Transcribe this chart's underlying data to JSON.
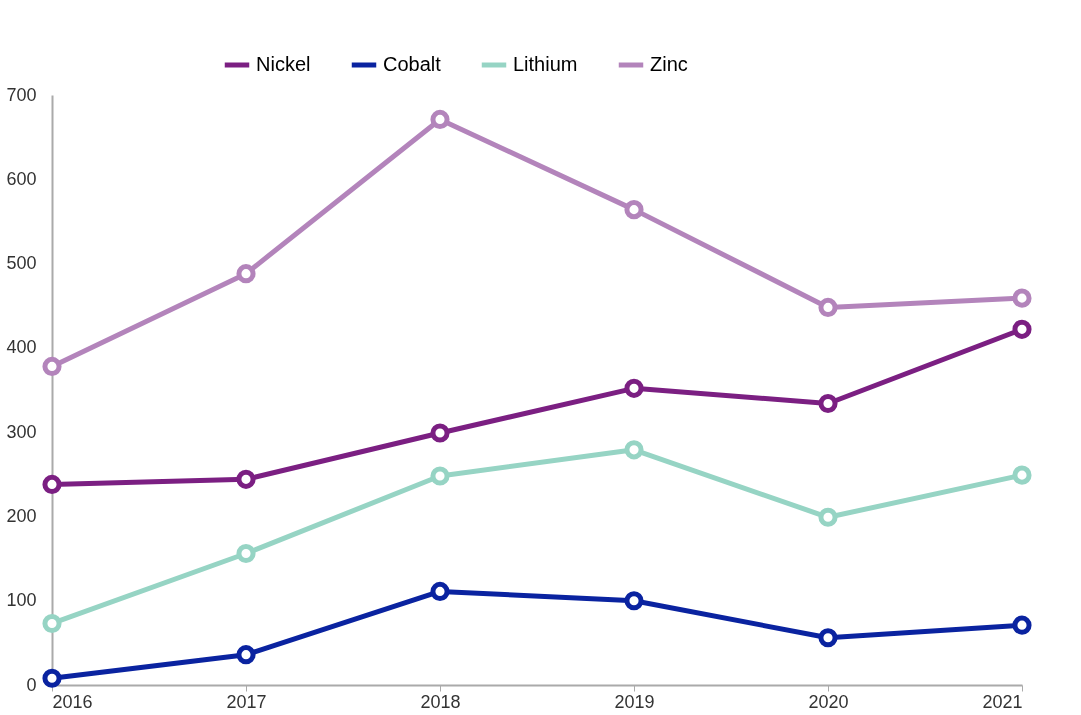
{
  "chart_data": {
    "type": "line",
    "categories": [
      "2016",
      "2017",
      "2018",
      "2019",
      "2020",
      "2021"
    ],
    "series": [
      {
        "name": "Nickel",
        "color": "#7b1f82",
        "values": [
          238,
          244,
          299,
          352,
          334,
          422
        ]
      },
      {
        "name": "Cobalt",
        "color": "#0a23a0",
        "values": [
          8,
          36,
          111,
          100,
          56,
          71
        ]
      },
      {
        "name": "Lithium",
        "color": "#96d4c4",
        "values": [
          73,
          156,
          248,
          279,
          199,
          249
        ]
      },
      {
        "name": "Zinc",
        "color": "#b384bb",
        "values": [
          378,
          488,
          671,
          564,
          448,
          459
        ]
      }
    ],
    "ylim": [
      0,
      700
    ],
    "yticks": [
      0,
      100,
      200,
      300,
      400,
      500,
      600,
      700
    ],
    "grid": false,
    "legend": "top",
    "marker": "circle",
    "line_style": "solid"
  }
}
